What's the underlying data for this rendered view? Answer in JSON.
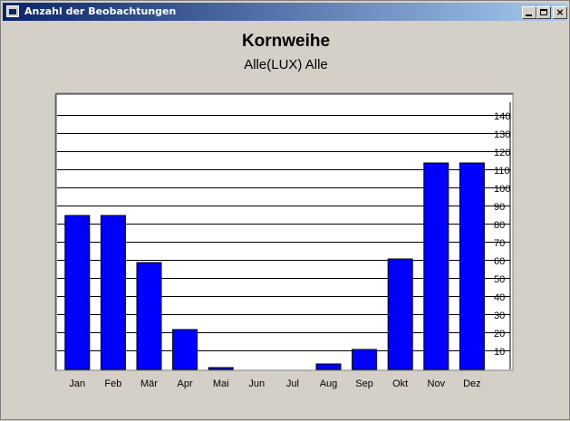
{
  "window": {
    "title": "Anzahl der Beobachtungen",
    "minimize_label": "_",
    "maximize_label": "□",
    "close_label": "×"
  },
  "colors": {
    "bar": "#0000ff",
    "plot_bg": "#ffffff",
    "window_bg": "#d4d0c8",
    "titlebar": "#0a246a"
  },
  "chart_data": {
    "type": "bar",
    "title": "Kornweihe",
    "subtitle": "Alle(LUX) Alle",
    "categories": [
      "Jan",
      "Feb",
      "Mär",
      "Apr",
      "Mai",
      "Jun",
      "Jul",
      "Aug",
      "Sep",
      "Okt",
      "Nov",
      "Dez"
    ],
    "values": [
      85,
      85,
      59,
      22,
      1,
      0,
      0,
      3,
      11,
      61,
      114,
      114
    ],
    "ylim": [
      0,
      150
    ],
    "yticks": [
      10,
      20,
      30,
      40,
      50,
      60,
      70,
      80,
      90,
      100,
      110,
      120,
      130,
      140
    ],
    "y_axis_side": "right",
    "grid": true
  }
}
